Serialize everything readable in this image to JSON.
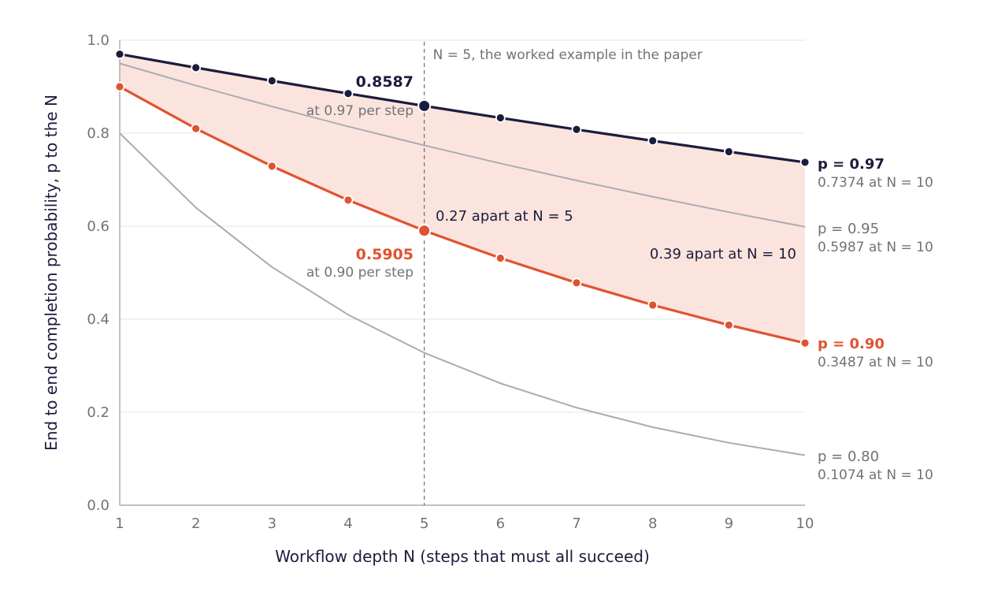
{
  "chart_data": {
    "type": "line",
    "xlabel": "Workflow depth N (steps that must all succeed)",
    "ylabel": "End to end completion probability, p to the N",
    "x": [
      1,
      2,
      3,
      4,
      5,
      6,
      7,
      8,
      9,
      10
    ],
    "xlim": [
      1,
      10
    ],
    "ylim": [
      0,
      1
    ],
    "xticks": [
      "1",
      "2",
      "3",
      "4",
      "5",
      "6",
      "7",
      "8",
      "9",
      "10"
    ],
    "yticks": [
      "0.0",
      "0.2",
      "0.4",
      "0.6",
      "0.8",
      "1.0"
    ],
    "grid": "horizontal",
    "series": [
      {
        "name": "p = 0.97",
        "end_label": "0.7374 at N = 10",
        "values": [
          0.97,
          0.9409,
          0.9127,
          0.8853,
          0.8587,
          0.833,
          0.808,
          0.7837,
          0.7602,
          0.7374
        ],
        "color": "#1b1c3d",
        "emphasis": true
      },
      {
        "name": "p = 0.95",
        "end_label": "0.5987 at N = 10",
        "values": [
          0.95,
          0.9025,
          0.8574,
          0.8145,
          0.7738,
          0.7351,
          0.6983,
          0.6634,
          0.6302,
          0.5987
        ],
        "color": "#a9adb1",
        "emphasis": false
      },
      {
        "name": "p = 0.90",
        "end_label": "0.3487 at N = 10",
        "values": [
          0.9,
          0.81,
          0.729,
          0.6561,
          0.5905,
          0.5314,
          0.4783,
          0.4305,
          0.3874,
          0.3487
        ],
        "color": "#e0532f",
        "emphasis": true
      },
      {
        "name": "p = 0.80",
        "end_label": "0.1074 at N = 10",
        "values": [
          0.8,
          0.64,
          0.512,
          0.4096,
          0.3277,
          0.2621,
          0.2097,
          0.1678,
          0.1342,
          0.1074
        ],
        "color": "#a9adb1",
        "emphasis": false
      }
    ],
    "shaded_band": {
      "between": [
        "p = 0.97",
        "p = 0.90"
      ],
      "color": "#fbe4de"
    },
    "reference_line": {
      "x": 5,
      "label": "N = 5, the worked example in the paper"
    },
    "annotations": {
      "high_value": "0.8587",
      "high_sub": "at 0.97 per step",
      "low_value": "0.5905",
      "low_sub": "at 0.90 per step",
      "gap_n5": "0.27 apart at N = 5",
      "gap_n10": "0.39 apart at N = 10"
    },
    "colors": {
      "dark": "#1b1c3d",
      "orange": "#e0532f",
      "gray_line": "#a9adb1",
      "gray_text": "#6f7378",
      "grid": "#e3e3e3",
      "axis": "#9a9a9a"
    }
  }
}
